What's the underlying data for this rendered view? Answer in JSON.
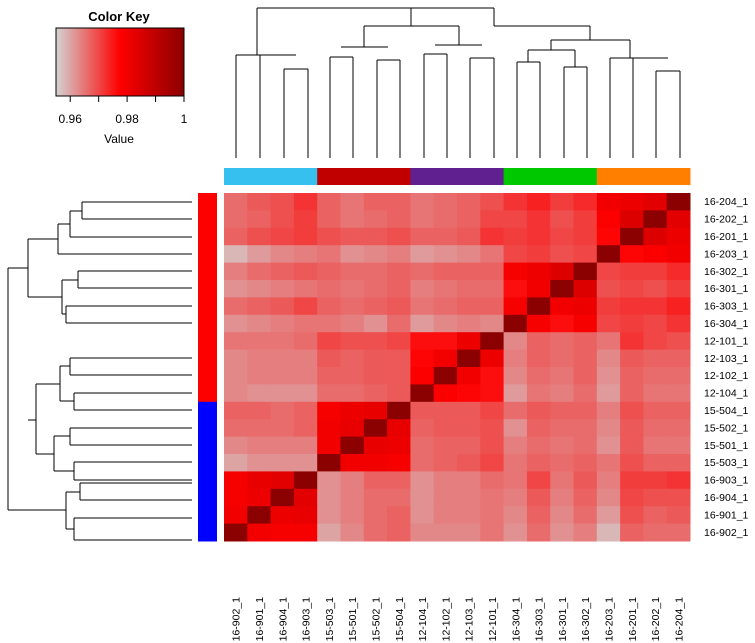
{
  "chart_data": {
    "type": "heatmap",
    "title": "",
    "color_key": {
      "title": "Color Key",
      "xlabel": "Value",
      "range": [
        0.955,
        1
      ],
      "ticks": [
        0.96,
        0.98,
        1
      ],
      "tick_labels": [
        "0.96",
        "0.98",
        "1"
      ],
      "colors": [
        "#d3d3d3",
        "#ff0000",
        "#8b0000"
      ]
    },
    "row_labels": [
      "16-204_1",
      "16-202_1",
      "16-201_1",
      "16-203_1",
      "16-302_1",
      "16-301_1",
      "16-303_1",
      "16-304_1",
      "12-101_1",
      "12-103_1",
      "12-102_1",
      "12-104_1",
      "15-504_1",
      "15-502_1",
      "15-501_1",
      "15-503_1",
      "16-903_1",
      "16-904_1",
      "16-901_1",
      "16-902_1"
    ],
    "col_labels": [
      "16-902_1",
      "16-901_1",
      "16-904_1",
      "16-903_1",
      "15-503_1",
      "15-501_1",
      "15-502_1",
      "15-504_1",
      "12-104_1",
      "12-102_1",
      "12-103_1",
      "12-101_1",
      "16-304_1",
      "16-303_1",
      "16-301_1",
      "16-302_1",
      "16-203_1",
      "16-201_1",
      "16-202_1",
      "16-204_1"
    ],
    "row_side_colors": [
      "#ff0000",
      "#ff0000",
      "#ff0000",
      "#ff0000",
      "#ff0000",
      "#ff0000",
      "#ff0000",
      "#ff0000",
      "#ff0000",
      "#ff0000",
      "#ff0000",
      "#ff0000",
      "#0000ff",
      "#0000ff",
      "#0000ff",
      "#0000ff",
      "#0000ff",
      "#0000ff",
      "#0000ff",
      "#0000ff"
    ],
    "col_side_colors": [
      "#36c0f0",
      "#36c0f0",
      "#36c0f0",
      "#36c0f0",
      "#c00000",
      "#c00000",
      "#c00000",
      "#c00000",
      "#602090",
      "#602090",
      "#602090",
      "#602090",
      "#00c800",
      "#00c800",
      "#00c800",
      "#00c800",
      "#ff8000",
      "#ff8000",
      "#ff8000",
      "#ff8000"
    ],
    "values": [
      [
        0.966,
        0.968,
        0.969,
        0.972,
        0.967,
        0.965,
        0.967,
        0.967,
        0.965,
        0.966,
        0.967,
        0.969,
        0.972,
        0.974,
        0.971,
        0.973,
        0.98,
        0.981,
        0.983,
        1.0
      ],
      [
        0.966,
        0.967,
        0.969,
        0.971,
        0.967,
        0.965,
        0.966,
        0.967,
        0.965,
        0.966,
        0.967,
        0.97,
        0.97,
        0.972,
        0.969,
        0.971,
        0.978,
        0.984,
        1.0,
        0.983
      ],
      [
        0.967,
        0.969,
        0.97,
        0.971,
        0.969,
        0.968,
        0.968,
        0.969,
        0.967,
        0.967,
        0.968,
        0.972,
        0.971,
        0.972,
        0.97,
        0.971,
        0.977,
        1.0,
        0.984,
        0.981
      ],
      [
        0.958,
        0.961,
        0.963,
        0.964,
        0.965,
        0.962,
        0.963,
        0.964,
        0.961,
        0.962,
        0.963,
        0.965,
        0.97,
        0.971,
        0.969,
        0.97,
        1.0,
        0.977,
        0.978,
        0.98
      ],
      [
        0.964,
        0.966,
        0.967,
        0.968,
        0.967,
        0.966,
        0.966,
        0.967,
        0.966,
        0.967,
        0.967,
        0.967,
        0.979,
        0.981,
        0.984,
        1.0,
        0.97,
        0.971,
        0.971,
        0.973
      ],
      [
        0.962,
        0.963,
        0.964,
        0.965,
        0.966,
        0.965,
        0.966,
        0.967,
        0.964,
        0.965,
        0.966,
        0.966,
        0.976,
        0.98,
        1.0,
        0.984,
        0.969,
        0.97,
        0.969,
        0.971
      ],
      [
        0.966,
        0.967,
        0.968,
        0.97,
        0.967,
        0.966,
        0.967,
        0.968,
        0.965,
        0.966,
        0.967,
        0.967,
        0.979,
        1.0,
        0.98,
        0.981,
        0.971,
        0.972,
        0.972,
        0.974
      ],
      [
        0.962,
        0.963,
        0.964,
        0.965,
        0.965,
        0.964,
        0.962,
        0.966,
        0.961,
        0.963,
        0.964,
        0.963,
        1.0,
        0.979,
        0.976,
        0.979,
        0.97,
        0.971,
        0.97,
        0.972
      ],
      [
        0.965,
        0.965,
        0.965,
        0.966,
        0.97,
        0.969,
        0.969,
        0.97,
        0.976,
        0.976,
        0.981,
        1.0,
        0.963,
        0.967,
        0.966,
        0.967,
        0.965,
        0.972,
        0.97,
        0.969
      ],
      [
        0.963,
        0.964,
        0.964,
        0.964,
        0.968,
        0.967,
        0.968,
        0.968,
        0.977,
        0.98,
        1.0,
        0.981,
        0.964,
        0.967,
        0.966,
        0.967,
        0.963,
        0.968,
        0.967,
        0.967
      ],
      [
        0.963,
        0.964,
        0.964,
        0.964,
        0.967,
        0.967,
        0.968,
        0.968,
        0.978,
        1.0,
        0.98,
        0.976,
        0.963,
        0.966,
        0.965,
        0.967,
        0.962,
        0.967,
        0.966,
        0.966
      ],
      [
        0.963,
        0.962,
        0.962,
        0.962,
        0.966,
        0.966,
        0.967,
        0.968,
        1.0,
        0.978,
        0.977,
        0.976,
        0.961,
        0.965,
        0.964,
        0.966,
        0.961,
        0.967,
        0.965,
        0.965
      ],
      [
        0.967,
        0.967,
        0.966,
        0.967,
        0.979,
        0.981,
        0.982,
        1.0,
        0.968,
        0.968,
        0.968,
        0.97,
        0.966,
        0.968,
        0.967,
        0.967,
        0.964,
        0.969,
        0.967,
        0.967
      ],
      [
        0.966,
        0.966,
        0.966,
        0.967,
        0.98,
        0.982,
        1.0,
        0.982,
        0.967,
        0.968,
        0.968,
        0.969,
        0.962,
        0.967,
        0.966,
        0.966,
        0.963,
        0.968,
        0.966,
        0.966
      ],
      [
        0.963,
        0.964,
        0.964,
        0.964,
        0.98,
        1.0,
        0.982,
        0.981,
        0.966,
        0.967,
        0.967,
        0.969,
        0.964,
        0.966,
        0.965,
        0.966,
        0.962,
        0.968,
        0.965,
        0.965
      ],
      [
        0.96,
        0.962,
        0.962,
        0.962,
        1.0,
        0.98,
        0.98,
        0.979,
        0.966,
        0.967,
        0.968,
        0.97,
        0.965,
        0.967,
        0.966,
        0.967,
        0.965,
        0.969,
        0.967,
        0.967
      ],
      [
        0.979,
        0.982,
        0.983,
        1.0,
        0.962,
        0.964,
        0.967,
        0.967,
        0.962,
        0.964,
        0.964,
        0.966,
        0.965,
        0.97,
        0.965,
        0.968,
        0.964,
        0.971,
        0.971,
        0.972
      ],
      [
        0.979,
        0.981,
        1.0,
        0.983,
        0.962,
        0.964,
        0.966,
        0.966,
        0.962,
        0.964,
        0.964,
        0.965,
        0.964,
        0.968,
        0.964,
        0.967,
        0.963,
        0.97,
        0.969,
        0.969
      ],
      [
        0.98,
        1.0,
        0.981,
        0.982,
        0.962,
        0.964,
        0.966,
        0.967,
        0.962,
        0.964,
        0.964,
        0.965,
        0.963,
        0.967,
        0.963,
        0.966,
        0.961,
        0.969,
        0.967,
        0.968
      ],
      [
        1.0,
        0.98,
        0.979,
        0.979,
        0.96,
        0.963,
        0.966,
        0.967,
        0.963,
        0.963,
        0.963,
        0.965,
        0.962,
        0.966,
        0.962,
        0.964,
        0.958,
        0.967,
        0.966,
        0.966
      ]
    ]
  }
}
